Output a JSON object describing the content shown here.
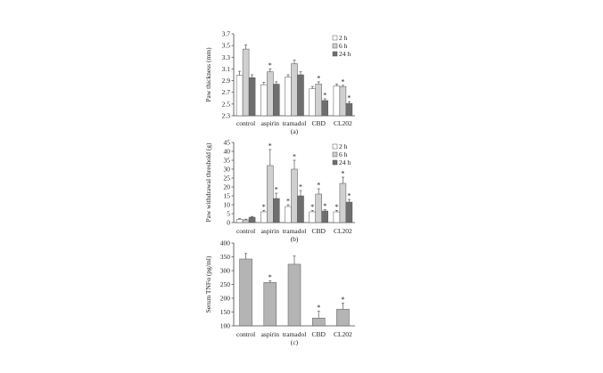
{
  "chart_data": [
    {
      "type": "bar",
      "panel_label": "(a)",
      "ylabel": "Paw thickness (mm)",
      "ylim": [
        2.3,
        3.7
      ],
      "yticks": [
        "2.3",
        "2.5",
        "2.7",
        "2.9",
        "3.1",
        "3.3",
        "3.5",
        "3.7"
      ],
      "categories": [
        "control",
        "aspirin",
        "tramadol",
        "CBD",
        "CL202"
      ],
      "legend_position": "top-right",
      "series": [
        {
          "name": "2 h",
          "color": "#ffffff",
          "values": [
            2.99,
            2.83,
            2.96,
            2.76,
            2.81
          ],
          "errors": [
            0.07,
            0.04,
            0.04,
            0.04,
            0.03
          ],
          "stars": [
            false,
            false,
            false,
            false,
            false
          ]
        },
        {
          "name": "6 h",
          "color": "#d0d0d0",
          "values": [
            3.44,
            3.05,
            3.19,
            2.84,
            2.8
          ],
          "errors": [
            0.07,
            0.05,
            0.06,
            0.04,
            0.02
          ],
          "stars": [
            false,
            true,
            false,
            true,
            true
          ]
        },
        {
          "name": "24 h",
          "color": "#6e6e6e",
          "values": [
            2.95,
            2.84,
            3.0,
            2.56,
            2.51
          ],
          "errors": [
            0.05,
            0.04,
            0.05,
            0.03,
            0.03
          ],
          "stars": [
            false,
            false,
            false,
            true,
            true
          ]
        }
      ]
    },
    {
      "type": "bar",
      "panel_label": "(b)",
      "ylabel": "Paw withdrawal threshold (g)",
      "ylim": [
        0,
        45
      ],
      "yticks": [
        "0",
        "5",
        "10",
        "15",
        "20",
        "25",
        "30",
        "35",
        "40",
        "45"
      ],
      "categories": [
        "control",
        "aspirin",
        "tramadol",
        "CBD",
        "CL202"
      ],
      "legend_position": "top-right",
      "series": [
        {
          "name": "2 h",
          "color": "#ffffff",
          "values": [
            1.8,
            6.0,
            9.0,
            6.0,
            6.0
          ],
          "errors": [
            0.4,
            0.8,
            1.0,
            0.8,
            0.8
          ],
          "stars": [
            false,
            true,
            true,
            true,
            true
          ]
        },
        {
          "name": "6 h",
          "color": "#d0d0d0",
          "values": [
            1.5,
            32.0,
            30.0,
            16.0,
            22.0
          ],
          "errors": [
            0.4,
            9.0,
            5.0,
            3.0,
            3.5
          ],
          "stars": [
            false,
            true,
            true,
            true,
            true
          ]
        },
        {
          "name": "24 h",
          "color": "#6e6e6e",
          "values": [
            3.0,
            13.5,
            15.0,
            6.5,
            11.5
          ],
          "errors": [
            0.4,
            3.0,
            3.0,
            0.8,
            1.5
          ],
          "stars": [
            false,
            true,
            true,
            true,
            true
          ]
        }
      ]
    },
    {
      "type": "bar",
      "panel_label": "(c)",
      "ylabel": "Serum TNFα (pg/ml)",
      "ylim": [
        100,
        400
      ],
      "yticks": [
        "100",
        "150",
        "200",
        "250",
        "300",
        "350",
        "400"
      ],
      "categories": [
        "control",
        "aspirin",
        "tramadol",
        "CBD",
        "CL202"
      ],
      "series": [
        {
          "color": "#b4b4b4",
          "values": [
            342,
            257,
            323,
            128,
            160
          ],
          "errors": [
            20,
            6,
            30,
            25,
            22
          ],
          "stars": [
            false,
            true,
            false,
            true,
            true
          ]
        }
      ]
    }
  ]
}
